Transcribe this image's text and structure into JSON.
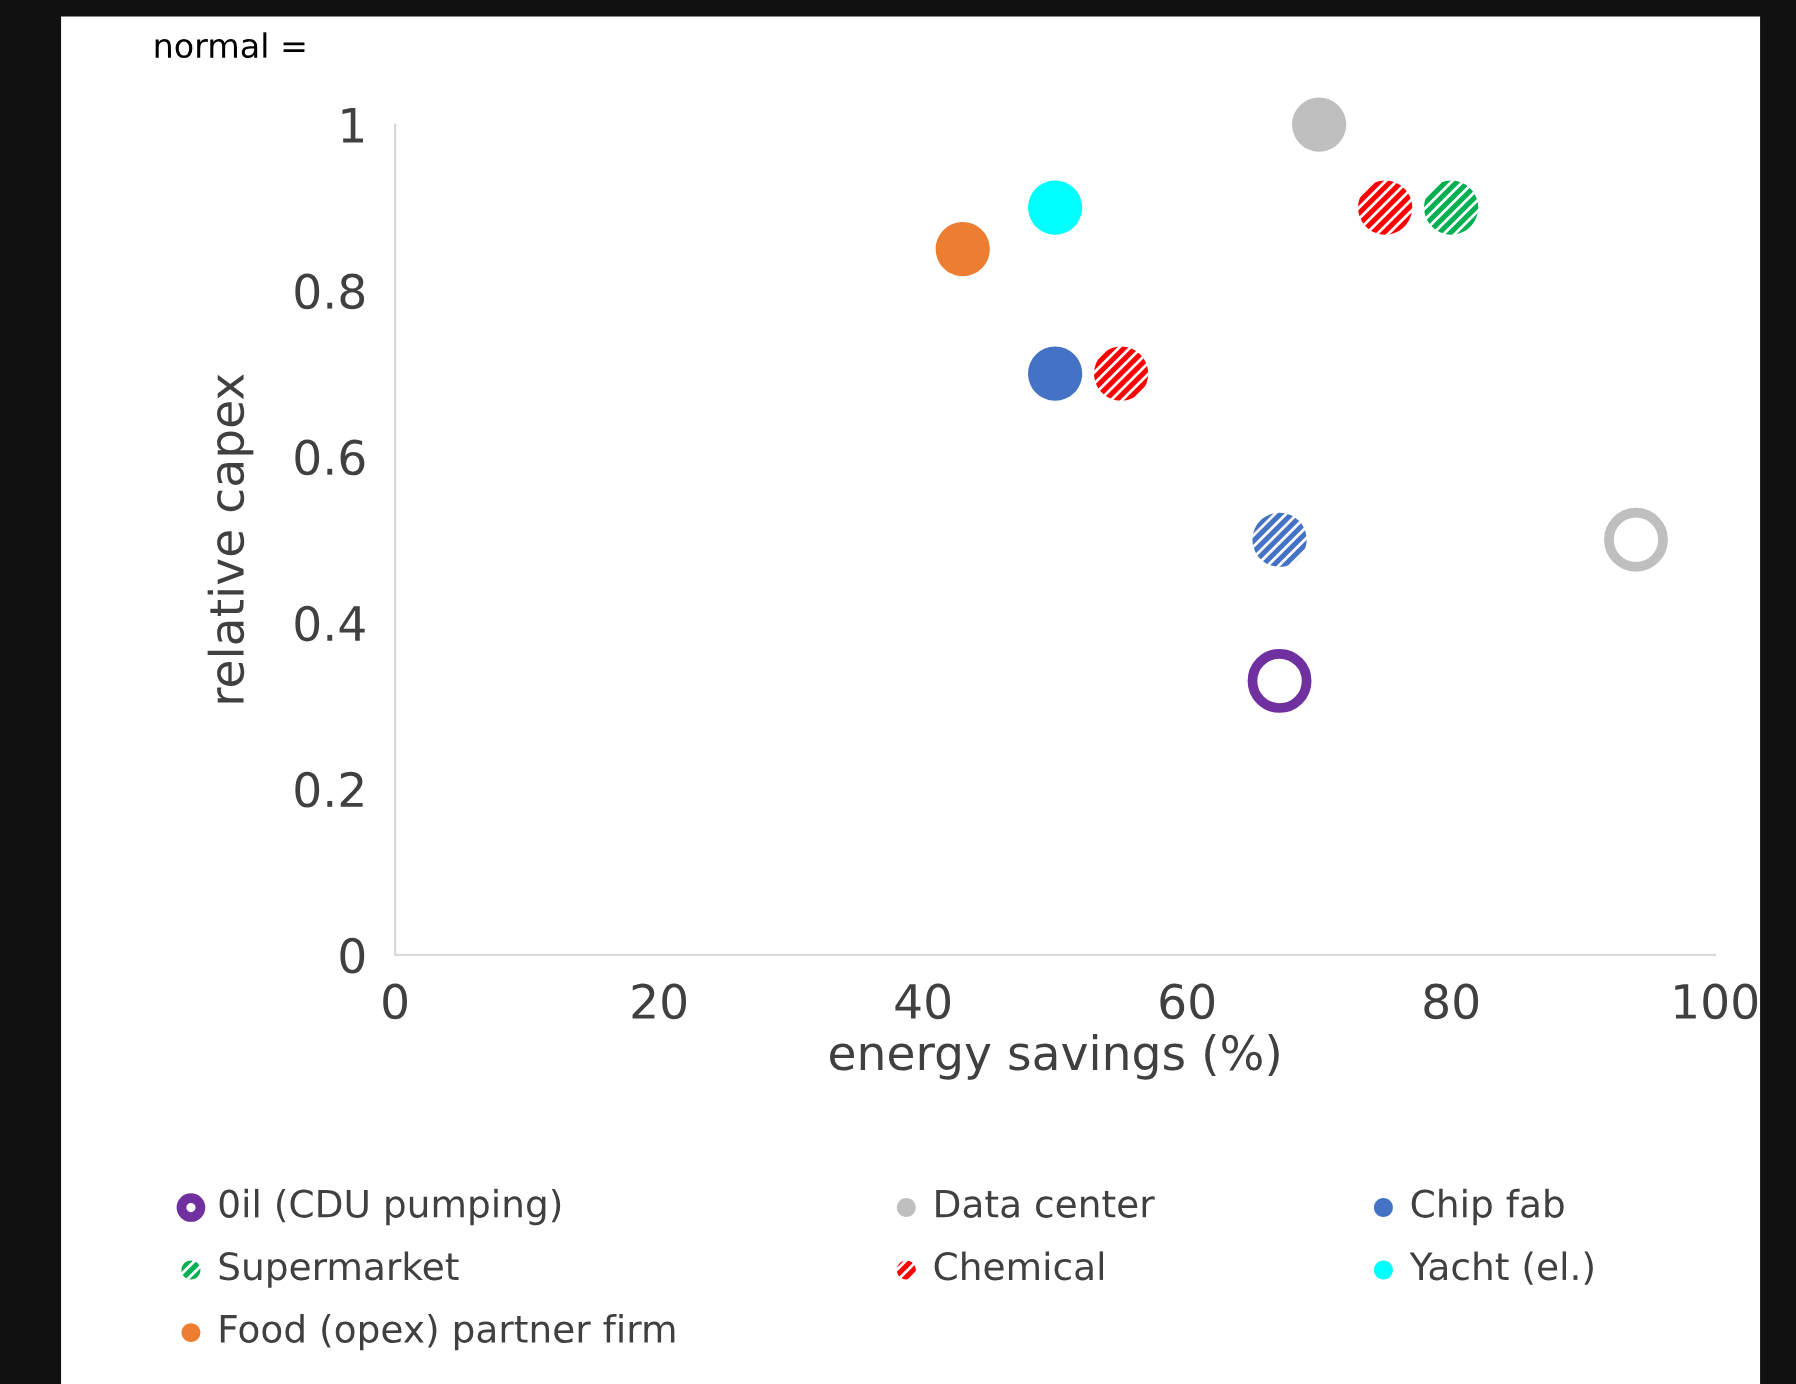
{
  "chart_data": {
    "type": "scatter",
    "xlabel": "energy savings (%)",
    "ylabel": "relative capex",
    "annotations": [
      "normal ="
    ],
    "xlim": [
      0,
      100
    ],
    "xticks": [
      0,
      20,
      40,
      60,
      80,
      100
    ],
    "ylim": [
      0,
      1
    ],
    "yticks": [
      0,
      0.2,
      0.4,
      0.6,
      0.8,
      1
    ],
    "grid": false,
    "legend": "bottom",
    "marker": "circle",
    "series": [
      {
        "name": "0il (CDU pumping)",
        "color": "#7030a0",
        "x": [
          67
        ],
        "values": [
          0.33
        ]
      },
      {
        "name": "Data center",
        "color": "#bfbfbf",
        "x": [
          70,
          94
        ],
        "values": [
          1,
          0.5
        ]
      },
      {
        "name": "Chip fab",
        "color": "#4472c4",
        "x": [
          50,
          67
        ],
        "values": [
          0.7,
          0.5
        ]
      },
      {
        "name": "Supermarket",
        "color": "#00b050",
        "x": [
          80
        ],
        "values": [
          0.9
        ]
      },
      {
        "name": "Chemical",
        "color": "#ff0000",
        "x": [
          55,
          75
        ],
        "values": [
          0.7,
          0.9
        ]
      },
      {
        "name": "Yacht (el.)",
        "color": "#00ffff",
        "x": [
          50
        ],
        "values": [
          0.9
        ]
      },
      {
        "name": "Food (opex) partner firm",
        "color": "#ed7d31",
        "x": [
          43
        ],
        "values": [
          0.85
        ]
      }
    ]
  }
}
